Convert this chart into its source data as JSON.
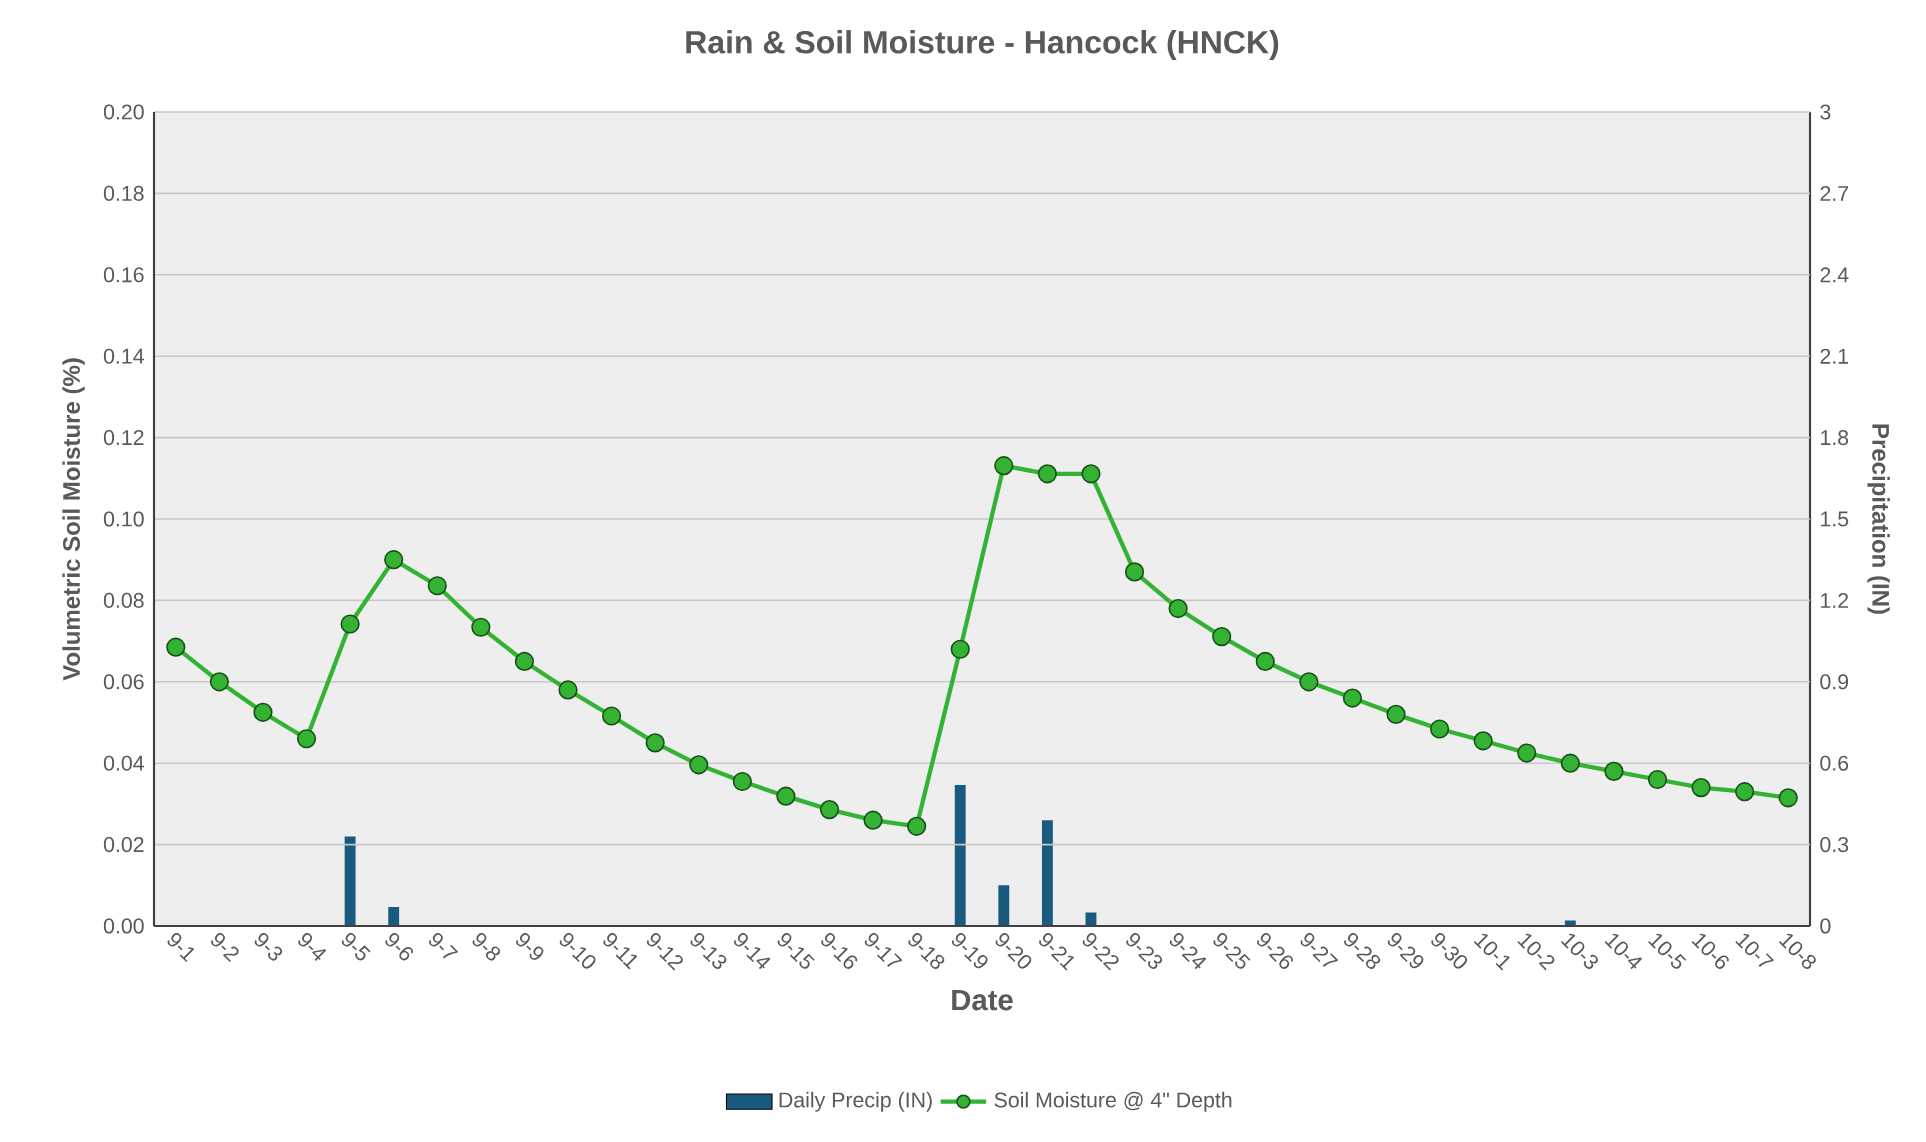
{
  "chart_data": {
    "type": "bar",
    "title": "Rain & Soil Moisture - Hancock (HNCK)",
    "xlabel": "Date",
    "ylabel": "Volumetric Soil Moisture (%)",
    "y2label": "Precipitation (IN)",
    "categories": [
      "9-1",
      "9-2",
      "9-3",
      "9-4",
      "9-5",
      "9-6",
      "9-7",
      "9-8",
      "9-9",
      "9-10",
      "9-11",
      "9-12",
      "9-13",
      "9-14",
      "9-15",
      "9-16",
      "9-17",
      "9-18",
      "9-19",
      "9-20",
      "9-21",
      "9-22",
      "9-23",
      "9-24",
      "9-25",
      "9-26",
      "9-27",
      "9-28",
      "9-29",
      "9-30",
      "10-1",
      "10-2",
      "10-3",
      "10-4",
      "10-5",
      "10-6",
      "10-7",
      "10-8"
    ],
    "series": [
      {
        "name": "Daily Precip (IN)",
        "axis": "y2",
        "color": "#1a5a7e",
        "values": [
          0,
          0,
          0,
          0,
          0.33,
          0.07,
          0,
          0,
          0,
          0,
          0,
          0,
          0,
          0,
          0,
          0,
          0,
          0,
          0.52,
          0.15,
          0.39,
          0.05,
          0,
          0,
          0,
          0,
          0,
          0,
          0,
          0,
          0,
          0,
          0.02,
          0,
          0,
          0,
          0,
          0
        ]
      },
      {
        "name": "Soil Moisture @ 4\" Depth",
        "type": "line",
        "color": "#33b233",
        "marker": "circle",
        "line_style": "solid",
        "values": [
          0.0685,
          0.06,
          0.0525,
          0.046,
          0.0742,
          0.09,
          0.0836,
          0.0734,
          0.065,
          0.058,
          0.0516,
          0.045,
          0.0396,
          0.0355,
          0.0319,
          0.0286,
          0.026,
          0.0245,
          0.068,
          0.1131,
          0.1111,
          0.1111,
          0.087,
          0.078,
          0.0711,
          0.065,
          0.06,
          0.056,
          0.052,
          0.0484,
          0.0455,
          0.0425,
          0.04,
          0.038,
          0.036,
          0.034,
          0.033,
          0.0315
        ]
      }
    ],
    "ylim": [
      0,
      0.2
    ],
    "yticks": [
      {
        "value": 0,
        "label": "0.00"
      },
      {
        "value": 0.02,
        "label": "0.02"
      },
      {
        "value": 0.04,
        "label": "0.04"
      },
      {
        "value": 0.06,
        "label": "0.06"
      },
      {
        "value": 0.08,
        "label": "0.08"
      },
      {
        "value": 0.1,
        "label": "0.10"
      },
      {
        "value": 0.12,
        "label": "0.12"
      },
      {
        "value": 0.14,
        "label": "0.14"
      },
      {
        "value": 0.16,
        "label": "0.16"
      },
      {
        "value": 0.18,
        "label": "0.18"
      },
      {
        "value": 0.2,
        "label": "0.20"
      }
    ],
    "y2lim": [
      0,
      3
    ],
    "y2ticks": [
      0,
      0.3,
      0.6,
      0.9,
      1.2,
      1.5,
      1.8,
      2.1,
      2.4,
      2.7,
      3
    ],
    "grid": "y",
    "legend": "bottom"
  }
}
